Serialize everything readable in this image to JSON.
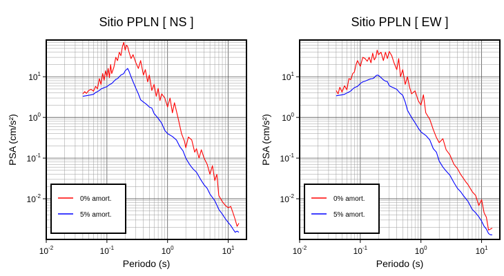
{
  "chart_data": [
    {
      "type": "line",
      "title": "Sitio PPLN [ NS ]",
      "xlabel": "Periodo (s)",
      "ylabel": "PSA (cm/s²)",
      "xscale": "log",
      "yscale": "log",
      "xlim": [
        0.01,
        20
      ],
      "ylim": [
        0.001,
        80
      ],
      "grid": true,
      "legend_position": "bottom-left",
      "x_ticks": [
        {
          "value": 0.01,
          "base": "10",
          "exp": "-2"
        },
        {
          "value": 0.1,
          "base": "10",
          "exp": "-1"
        },
        {
          "value": 1,
          "base": "10",
          "exp": "0"
        },
        {
          "value": 10,
          "base": "10",
          "exp": "1"
        }
      ],
      "y_ticks": [
        {
          "value": 10,
          "base": "10",
          "exp": "1"
        },
        {
          "value": 1,
          "base": "10",
          "exp": "0"
        },
        {
          "value": 0.1,
          "base": "10",
          "exp": "-1"
        },
        {
          "value": 0.01,
          "base": "10",
          "exp": "-2"
        }
      ],
      "series": [
        {
          "name": "0% amort.",
          "color": "#ff0000",
          "x": [
            0.04,
            0.043,
            0.046,
            0.05,
            0.055,
            0.06,
            0.065,
            0.07,
            0.075,
            0.08,
            0.085,
            0.09,
            0.095,
            0.1,
            0.105,
            0.11,
            0.115,
            0.12,
            0.13,
            0.14,
            0.15,
            0.16,
            0.17,
            0.18,
            0.19,
            0.2,
            0.21,
            0.22,
            0.23,
            0.25,
            0.27,
            0.3,
            0.33,
            0.36,
            0.4,
            0.43,
            0.47,
            0.5,
            0.55,
            0.6,
            0.65,
            0.7,
            0.75,
            0.8,
            0.9,
            1.0,
            1.1,
            1.2,
            1.3,
            1.5,
            1.7,
            1.9,
            2.0,
            2.2,
            2.5,
            2.8,
            3.0,
            3.3,
            3.6,
            4.0,
            4.5,
            5,
            5.5,
            6,
            6.5,
            7,
            8,
            9,
            10,
            11,
            12,
            13,
            14,
            15
          ],
          "y": [
            3.8,
            4.3,
            3.9,
            4.6,
            4.9,
            4.4,
            5.8,
            5.1,
            9.0,
            6.5,
            12,
            8.2,
            14,
            10,
            16,
            9.5,
            20,
            12,
            17,
            30,
            25,
            40,
            33,
            55,
            70,
            45,
            60,
            55,
            42,
            28,
            35,
            22,
            16,
            25,
            11,
            15,
            7.5,
            11,
            4.6,
            6.5,
            3.3,
            5.2,
            2.6,
            3.8,
            3.0,
            1.8,
            3.0,
            1.3,
            2.3,
            0.92,
            0.4,
            0.26,
            0.18,
            0.33,
            0.28,
            0.14,
            0.17,
            0.1,
            0.16,
            0.1,
            0.07,
            0.04,
            0.065,
            0.028,
            0.04,
            0.012,
            0.0085,
            0.0068,
            0.006,
            0.0065,
            0.0045,
            0.0031,
            0.0021,
            0.0025
          ]
        },
        {
          "name": "5% amort.",
          "color": "#0000ff",
          "x": [
            0.04,
            0.045,
            0.05,
            0.055,
            0.06,
            0.065,
            0.07,
            0.075,
            0.08,
            0.09,
            0.1,
            0.11,
            0.12,
            0.13,
            0.14,
            0.15,
            0.16,
            0.17,
            0.18,
            0.19,
            0.2,
            0.21,
            0.22,
            0.23,
            0.25,
            0.27,
            0.3,
            0.33,
            0.36,
            0.4,
            0.45,
            0.5,
            0.55,
            0.6,
            0.7,
            0.8,
            0.9,
            1.0,
            1.2,
            1.4,
            1.6,
            1.8,
            2.0,
            2.3,
            2.6,
            3.0,
            3.5,
            4,
            4.5,
            5,
            6,
            7,
            8,
            9,
            10,
            11,
            12,
            13,
            14,
            15
          ],
          "y": [
            3.3,
            3.4,
            3.5,
            3.6,
            3.7,
            4.1,
            4.3,
            4.6,
            5.0,
            5.4,
            5.7,
            6.4,
            6.8,
            7.7,
            8.6,
            9.0,
            10,
            11,
            11.5,
            12,
            14,
            15,
            16,
            14,
            10,
            7.6,
            5.2,
            3.8,
            2.7,
            2.4,
            2.1,
            1.8,
            1.7,
            1.25,
            0.95,
            0.72,
            0.48,
            0.4,
            0.34,
            0.28,
            0.19,
            0.15,
            0.1,
            0.07,
            0.055,
            0.045,
            0.03,
            0.022,
            0.018,
            0.013,
            0.009,
            0.0055,
            0.0042,
            0.0032,
            0.0026,
            0.0022,
            0.0018,
            0.0015,
            0.0016,
            0.0015
          ]
        }
      ]
    },
    {
      "type": "line",
      "title": "Sitio PPLN [ EW ]",
      "xlabel": "Periodo (s)",
      "ylabel": "PSA (cm/s²)",
      "xscale": "log",
      "yscale": "log",
      "xlim": [
        0.01,
        20
      ],
      "ylim": [
        0.001,
        80
      ],
      "grid": true,
      "legend_position": "bottom-left",
      "x_ticks": [
        {
          "value": 0.01,
          "base": "10",
          "exp": "-2"
        },
        {
          "value": 0.1,
          "base": "10",
          "exp": "-1"
        },
        {
          "value": 1,
          "base": "10",
          "exp": "0"
        },
        {
          "value": 10,
          "base": "10",
          "exp": "1"
        }
      ],
      "y_ticks": [
        {
          "value": 10,
          "base": "10",
          "exp": "1"
        },
        {
          "value": 1,
          "base": "10",
          "exp": "0"
        },
        {
          "value": 0.1,
          "base": "10",
          "exp": "-1"
        },
        {
          "value": 0.01,
          "base": "10",
          "exp": "-2"
        }
      ],
      "series": [
        {
          "name": "0% amort.",
          "color": "#ff0000",
          "x": [
            0.04,
            0.043,
            0.046,
            0.05,
            0.055,
            0.06,
            0.065,
            0.07,
            0.075,
            0.08,
            0.085,
            0.09,
            0.1,
            0.11,
            0.12,
            0.13,
            0.14,
            0.15,
            0.16,
            0.17,
            0.18,
            0.19,
            0.2,
            0.22,
            0.24,
            0.26,
            0.28,
            0.3,
            0.33,
            0.36,
            0.4,
            0.43,
            0.46,
            0.5,
            0.55,
            0.6,
            0.65,
            0.7,
            0.8,
            0.9,
            1.0,
            1.1,
            1.2,
            1.4,
            1.6,
            1.8,
            2.0,
            2.3,
            2.6,
            3.0,
            3.5,
            4,
            4.5,
            5,
            5.5,
            6,
            7,
            8,
            9,
            10,
            11,
            12,
            13,
            14,
            15
          ],
          "y": [
            4.6,
            3.8,
            5.5,
            4.2,
            6.0,
            4.8,
            9.0,
            8.5,
            12,
            13,
            20,
            25,
            18,
            30,
            28,
            24,
            30,
            22,
            38,
            26,
            30,
            45,
            35,
            40,
            25,
            40,
            28,
            42,
            33,
            22,
            15,
            28,
            10,
            15,
            6.5,
            10,
            5.5,
            3.8,
            4.5,
            2.6,
            2.0,
            3.6,
            1.3,
            0.9,
            0.5,
            0.32,
            0.24,
            0.3,
            0.16,
            0.12,
            0.07,
            0.055,
            0.04,
            0.032,
            0.026,
            0.022,
            0.015,
            0.012,
            0.0068,
            0.0095,
            0.0045,
            0.0035,
            0.0017,
            0.0018,
            0.0019
          ]
        },
        {
          "name": "5% amort.",
          "color": "#0000ff",
          "x": [
            0.04,
            0.045,
            0.05,
            0.055,
            0.06,
            0.065,
            0.07,
            0.075,
            0.08,
            0.09,
            0.1,
            0.11,
            0.12,
            0.13,
            0.14,
            0.15,
            0.16,
            0.17,
            0.18,
            0.19,
            0.2,
            0.22,
            0.24,
            0.26,
            0.28,
            0.3,
            0.33,
            0.36,
            0.4,
            0.45,
            0.5,
            0.55,
            0.6,
            0.7,
            0.8,
            0.9,
            1.0,
            1.2,
            1.4,
            1.6,
            1.8,
            2.0,
            2.3,
            2.6,
            3.0,
            3.5,
            4,
            4.5,
            5,
            6,
            7,
            8,
            9,
            10,
            11,
            12,
            13,
            14,
            15
          ],
          "y": [
            3.4,
            3.5,
            3.6,
            3.7,
            4.0,
            4.2,
            4.5,
            5.0,
            5.4,
            5.8,
            6.8,
            7.5,
            7.8,
            8.2,
            8.6,
            8.9,
            9.0,
            9.5,
            10.5,
            11,
            10.8,
            9.5,
            8.4,
            7.8,
            7.6,
            6.0,
            5.6,
            5.3,
            4.9,
            4.0,
            3.5,
            2.4,
            1.5,
            1.0,
            0.74,
            0.55,
            0.44,
            0.36,
            0.28,
            0.17,
            0.14,
            0.085,
            0.06,
            0.048,
            0.038,
            0.025,
            0.018,
            0.015,
            0.012,
            0.0085,
            0.0055,
            0.0045,
            0.0036,
            0.0028,
            0.0021,
            0.0018,
            0.0014,
            0.0013,
            0.0013
          ]
        }
      ]
    }
  ]
}
